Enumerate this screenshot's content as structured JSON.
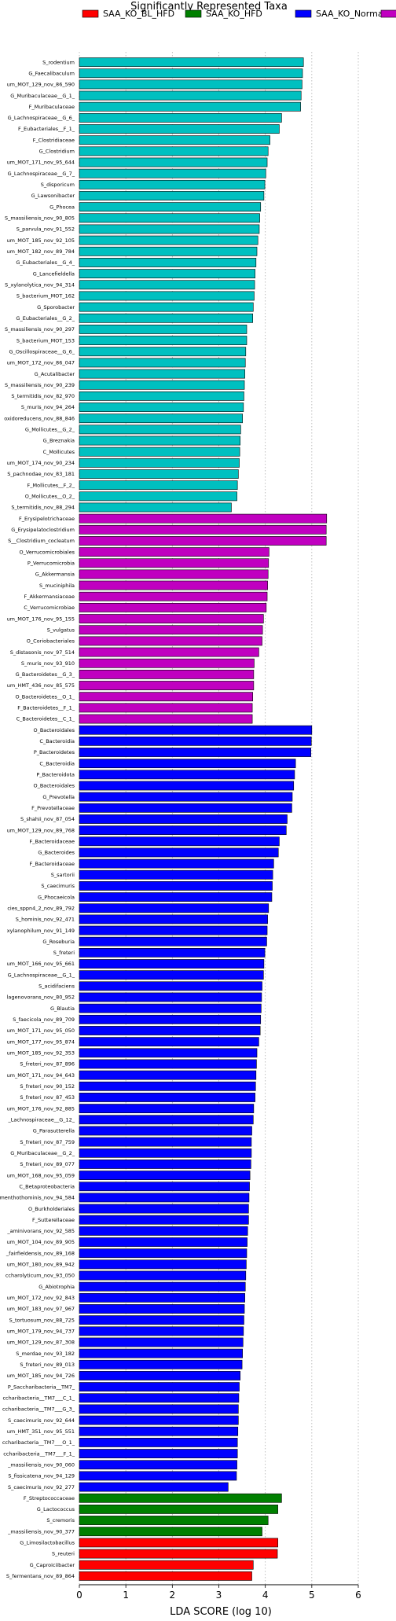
{
  "chart_data": {
    "type": "bar",
    "orientation": "horizontal",
    "title": "Significantly Represented Taxa",
    "xlabel": "LDA SCORE (log 10)",
    "ylabel": "",
    "xlim": [
      0,
      6
    ],
    "xticks": [
      "0",
      "1",
      "2",
      "3",
      "4",
      "5",
      "6"
    ],
    "grid": true,
    "legend_position": "top",
    "legend": [
      {
        "name": "SAA_KO_BL_HFD",
        "color": "#ff0000"
      },
      {
        "name": "SAA_KO_HFD",
        "color": "#008000"
      },
      {
        "name": "SAA_KO_Normal",
        "color": "#0000ff"
      },
      {
        "name": "",
        "color": "#c000c0"
      }
    ],
    "series": [
      {
        "name": "group_cyan",
        "color": "#00c0c0",
        "labels": [
          "S_rodentium",
          "G_Faecalibaculum",
          "um_MOT_129_nov_86_590",
          "G_Muribaculaceae__G_1_",
          "F_Muribaculaceae",
          "G_Lachnospiraceae__G_6_",
          "F_Eubacteriales__F_1_",
          "F_Clostridiaceae",
          "G_Clostridium",
          "um_MOT_171_nov_95_644",
          "G_Lachnospiraceae__G_7_",
          "S_disporicum",
          "G_Lawsonibacter",
          "G_Phocea",
          "S_massiliensis_nov_90_805",
          "S_parvula_nov_91_552",
          "um_MOT_185_nov_92_105",
          "um_MOT_182_nov_89_784",
          "G_Eubacteriales__G_4_",
          "G_Lancefieldella",
          "S_xylanolytica_nov_94_314",
          "S_bacterium_MOT_162",
          "G_Sporobacter",
          "G_Eubacteriales__G_2_",
          "S_massiliensis_nov_90_297",
          "S_bacterium_MOT_153",
          "G_Oscillospiraceae__G_6_",
          "um_MOT_172_nov_86_047",
          "G_Acutalibacter",
          "S_massiliensis_nov_90_239",
          "S_termitidis_nov_82_970",
          "S_muris_nov_94_264",
          "oxidoreducens_nov_88_846",
          "G_Mollicutes__G_2_",
          "G_Breznakia",
          "C_Mollicutes",
          "um_MOT_174_nov_90_234",
          "S_pachnodae_nov_83_181",
          "F_Mollicutes__F_2_",
          "O_Mollicutes__O_2_",
          "S_termitidis_nov_88_294"
        ],
        "values": [
          4.82,
          4.8,
          4.79,
          4.77,
          4.76,
          4.35,
          4.3,
          4.1,
          4.06,
          4.04,
          4.01,
          3.99,
          3.97,
          3.9,
          3.88,
          3.87,
          3.84,
          3.82,
          3.8,
          3.78,
          3.77,
          3.76,
          3.74,
          3.73,
          3.6,
          3.6,
          3.58,
          3.57,
          3.56,
          3.55,
          3.54,
          3.53,
          3.51,
          3.47,
          3.46,
          3.45,
          3.44,
          3.42,
          3.4,
          3.39,
          3.27
        ]
      },
      {
        "name": "group_magenta",
        "color": "#c000c0",
        "labels": [
          "F_Erysipelotrichaceae",
          "G_Erysipelatoclostridium",
          "S__Clostridium_cocleatum",
          "O_Verrucomicrobiales",
          "P_Verrucomicrobia",
          "G_Akkermansia",
          "S_muciniphila",
          "F_Akkermansiaceae",
          "C_Verrucomicrobiae",
          "um_MOT_176_nov_95_155",
          "S_vulgatus",
          "O_Coriobacteriales",
          "S_distasonis_nov_97_514",
          "S_muris_nov_93_910",
          "G_Bacteroidetes__G_3_",
          "um_HMT_436_nov_85_575",
          "O_Bacteroidetes__O_1_",
          "F_Bacteroidetes__F_1_",
          "C_Bacteroidetes__C_1_"
        ],
        "values": [
          5.32,
          5.31,
          5.31,
          4.08,
          4.07,
          4.06,
          4.05,
          4.04,
          4.02,
          3.96,
          3.94,
          3.93,
          3.86,
          3.76,
          3.75,
          3.75,
          3.73,
          3.72,
          3.72
        ]
      },
      {
        "name": "group_blue",
        "color": "#0000ff",
        "labels": [
          "O_Bacteroidales",
          "C_Bacteroidia",
          "P_Bacteroidetes",
          "C_Bacteroidia",
          "P_Bacteroidota",
          "O_Bacteroidales",
          "G_Prevotella",
          "F_Prevotellaceae",
          "S_shahii_nov_87_054",
          "um_MOT_129_nov_89_768",
          "F_Bacteroidaceae",
          "G_Bacteroides",
          "F_Bacteroidaceae",
          "S_sartorii",
          "S_caecimuris",
          "G_Phocaeicola",
          "cies_sppn4_2_nov_89_792",
          "S_hominis_nov_92_471",
          "xylanophilum_nov_91_149",
          "G_Roseburia",
          "S_freteri",
          "um_MOT_166_nov_95_661",
          "G_Lachnospiraceae__G_1_",
          "S_acidifaciens",
          "lagenovorans_nov_80_952",
          "G_Blautia",
          "S_faecicola_nov_89_709",
          "um_MOT_171_nov_95_050",
          "um_MOT_177_nov_95_874",
          "um_MOT_185_nov_92_353",
          "S_freteri_nov_87_896",
          "um_MOT_171_nov_94_643",
          "S_freteri_nov_90_152",
          "S_freteri_nov_87_453",
          "um_MOT_176_nov_92_885",
          "_Lachnospiraceae__G_12_",
          "G_Parasutterella",
          "S_freteri_nov_87_759",
          "G_Muribaculaceae__G_2_",
          "S_freteri_nov_89_077",
          "um_MOT_168_nov_95_059",
          "C_Betaproteobacteria",
          "menthothominis_nov_94_584",
          "O_Burkholderiales",
          "F_Sutterellaceae",
          "_aminivorans_nov_92_585",
          "um_MOT_104_nov_89_905",
          "_fairfieldensis_nov_89_168",
          "um_MOT_180_nov_89_942",
          "ccharolyticum_nov_93_050",
          "G_Abiotrophia",
          "um_MOT_172_nov_92_843",
          "um_MOT_183_nov_97_967",
          "S_tortuosum_nov_88_725",
          "um_MOT_179_nov_94_737",
          "um_MOT_129_nov_87_308",
          "S_merdae_nov_93_182",
          "S_freteri_nov_89_013",
          "um_MOT_185_nov_94_726",
          "P_Saccharibacteria__TM7_",
          "ccharibacteria__TM7___C_1_",
          "ccharibacteria__TM7___G_3_",
          "S_caecimuris_nov_92_644",
          "um_HMT_351_nov_95_551",
          "ccharibacteria__TM7___O_1_",
          "ccharibacteria__TM7___F_1_",
          "_massiliensis_nov_90_060",
          "S_fissicatena_nov_94_129",
          "S_caecimuris_nov_92_277"
        ],
        "values": [
          5.0,
          4.99,
          4.98,
          4.65,
          4.63,
          4.61,
          4.58,
          4.57,
          4.47,
          4.45,
          4.3,
          4.28,
          4.18,
          4.16,
          4.15,
          4.14,
          4.07,
          4.05,
          4.04,
          4.03,
          3.99,
          3.97,
          3.96,
          3.93,
          3.92,
          3.91,
          3.9,
          3.89,
          3.86,
          3.82,
          3.81,
          3.8,
          3.79,
          3.78,
          3.75,
          3.74,
          3.71,
          3.7,
          3.7,
          3.69,
          3.67,
          3.66,
          3.65,
          3.64,
          3.64,
          3.62,
          3.61,
          3.6,
          3.59,
          3.58,
          3.57,
          3.56,
          3.55,
          3.54,
          3.53,
          3.52,
          3.51,
          3.5,
          3.46,
          3.44,
          3.43,
          3.42,
          3.42,
          3.41,
          3.4,
          3.4,
          3.39,
          3.38,
          3.2
        ]
      },
      {
        "name": "group_green",
        "color": "#008000",
        "labels": [
          "F_Streptococcaceae",
          "G_Lactococcus",
          "S_cremoris",
          "_massiliensis_nov_90_377"
        ],
        "values": [
          4.35,
          4.27,
          4.06,
          3.93
        ]
      },
      {
        "name": "group_red",
        "color": "#ff0000",
        "labels": [
          "G_Limosilactobacillus",
          "S_reuteri",
          "G_Caproiciibacter",
          "S_fermentans_nov_89_864"
        ],
        "values": [
          4.27,
          4.26,
          3.74,
          3.71
        ]
      }
    ]
  }
}
